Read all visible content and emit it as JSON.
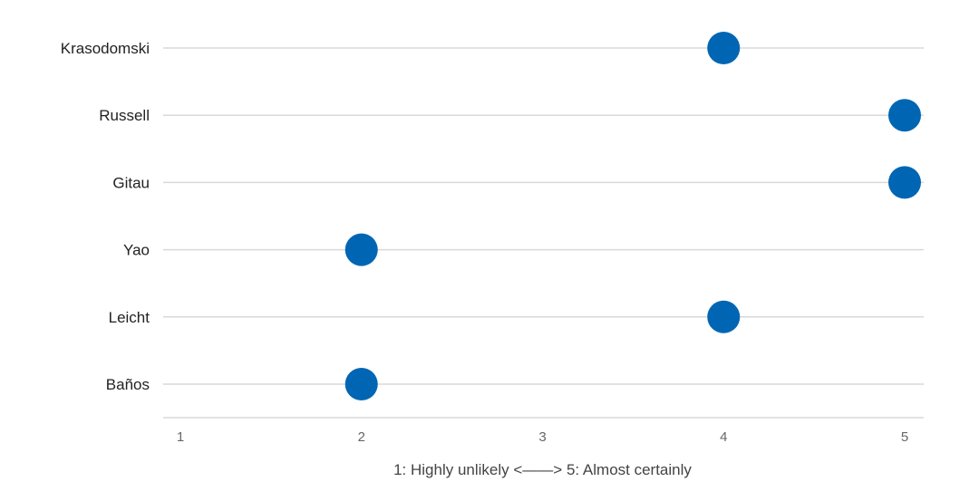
{
  "chart_data": {
    "type": "scatter",
    "orientation": "horizontal-dot",
    "categories": [
      "Krasodomski",
      "Russell",
      "Gitau",
      "Yao",
      "Leicht",
      "Baños"
    ],
    "values": [
      4,
      5,
      5,
      2,
      4,
      2
    ],
    "x_ticks": [
      "1",
      "2",
      "3",
      "4",
      "5"
    ],
    "xlim": [
      1,
      5
    ],
    "xlabel": "1: Highly unlikely <——> 5: Almost certainly",
    "title": "",
    "ylabel": "",
    "grid": "horizontal",
    "legend": "none",
    "point_color": "#0066B3",
    "grid_color": "#D9D9D9"
  }
}
